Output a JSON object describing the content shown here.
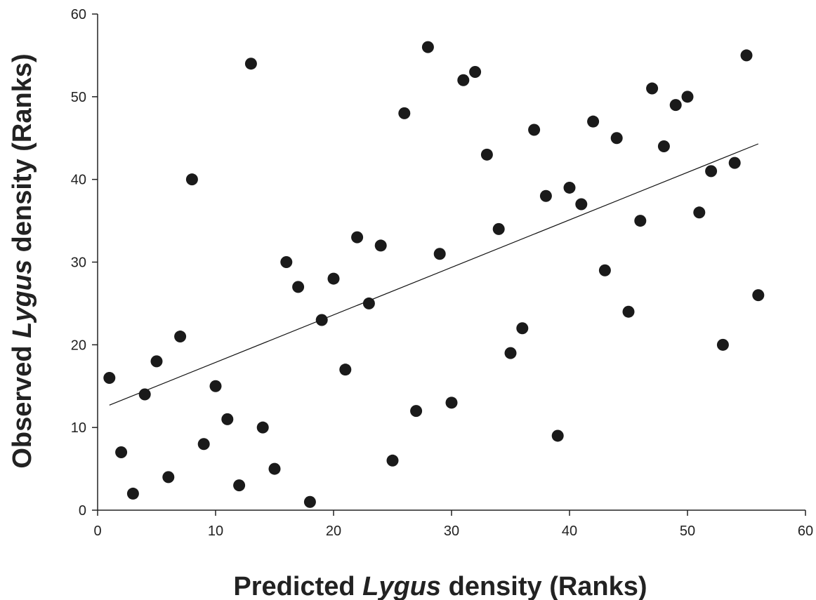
{
  "chart_data": {
    "type": "scatter",
    "xlabel_parts": [
      "Predicted ",
      "Lygus",
      " density (Ranks)"
    ],
    "ylabel_parts": [
      "Observed ",
      "Lygus",
      " density (Ranks)"
    ],
    "xlim": [
      0,
      60
    ],
    "ylim": [
      0,
      60
    ],
    "xticks": [
      0,
      10,
      20,
      30,
      40,
      50,
      60
    ],
    "yticks": [
      0,
      10,
      20,
      30,
      40,
      50,
      60
    ],
    "grid": false,
    "legend": "none",
    "point_color": "#1a1a1a",
    "series": [
      {
        "x": [
          1,
          2,
          3,
          4,
          5,
          6,
          7,
          8,
          9,
          10,
          11,
          12,
          13,
          14,
          15,
          16,
          17,
          18,
          19,
          20,
          21,
          22,
          23,
          24,
          25,
          26,
          27,
          28,
          29,
          30,
          31,
          32,
          33,
          34,
          35,
          36,
          37,
          38,
          39,
          40,
          41,
          42,
          43,
          44,
          45,
          46,
          47,
          48,
          49,
          50,
          51,
          52,
          53,
          54,
          55,
          56
        ],
        "y": [
          16,
          7,
          2,
          14,
          18,
          4,
          21,
          40,
          8,
          15,
          11,
          3,
          54,
          10,
          5,
          30,
          27,
          1,
          23,
          28,
          17,
          33,
          25,
          32,
          6,
          48,
          12,
          56,
          31,
          13,
          52,
          53,
          43,
          34,
          19,
          22,
          46,
          38,
          9,
          39,
          37,
          47,
          29,
          45,
          24,
          35,
          51,
          44,
          49,
          50,
          36,
          41,
          20,
          42,
          55,
          26
        ]
      }
    ],
    "fit_line": {
      "x": [
        1,
        56
      ],
      "y": [
        12.7,
        44.3
      ]
    }
  }
}
